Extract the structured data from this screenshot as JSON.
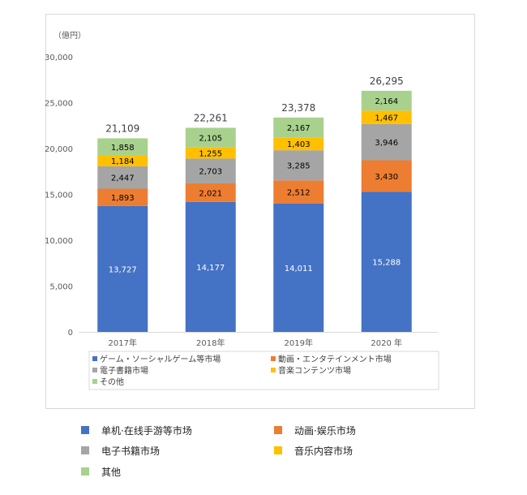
{
  "chart_data": {
    "type": "bar",
    "stacked": true,
    "unit_label": "（億円）",
    "categories": [
      "2017年",
      "2018年",
      "2019年",
      "2020 年"
    ],
    "series": [
      {
        "name": "ゲーム・ソーシャルゲーム等市場",
        "color": "#4472C4",
        "values": [
          13727,
          14177,
          14011,
          15288
        ],
        "labels": [
          "13,727",
          "14,177",
          "14,011",
          "15,288"
        ]
      },
      {
        "name": "動画・エンタテインメント市場",
        "color": "#ED7D31",
        "values": [
          1893,
          2021,
          2512,
          3430
        ],
        "labels": [
          "1,893",
          "2,021",
          "2,512",
          "3,430"
        ]
      },
      {
        "name": "電子書籍市場",
        "color": "#A5A5A5",
        "values": [
          2447,
          2703,
          3285,
          3946
        ],
        "labels": [
          "2,447",
          "2,703",
          "3,285",
          "3,946"
        ]
      },
      {
        "name": "音楽コンテンツ市場",
        "color": "#FFC000",
        "values": [
          1184,
          1255,
          1403,
          1467
        ],
        "labels": [
          "1,184",
          "1,255",
          "1,403",
          "1,467"
        ]
      },
      {
        "name": "その他",
        "color": "#A9D18E",
        "values": [
          1858,
          2105,
          2167,
          2164
        ],
        "labels": [
          "1,858",
          "2,105",
          "2,167",
          "2,164"
        ]
      }
    ],
    "totals": [
      "21,109",
      "22,261",
      "23,378",
      "26,295"
    ],
    "ylim": [
      0,
      30000
    ],
    "yticks": [
      "0",
      "5,000",
      "10,000",
      "15,000",
      "20,000",
      "25,000",
      "30,000"
    ],
    "grid": false,
    "legend_position": "bottom"
  },
  "legend_cn": [
    {
      "label": "单机·在线手游等市场",
      "color": "#4472C4"
    },
    {
      "label": "动画·娱乐市场",
      "color": "#ED7D31"
    },
    {
      "label": "电子书籍市场",
      "color": "#A5A5A5"
    },
    {
      "label": "音乐内容市场",
      "color": "#FFC000"
    },
    {
      "label": "其他",
      "color": "#A9D18E"
    }
  ]
}
